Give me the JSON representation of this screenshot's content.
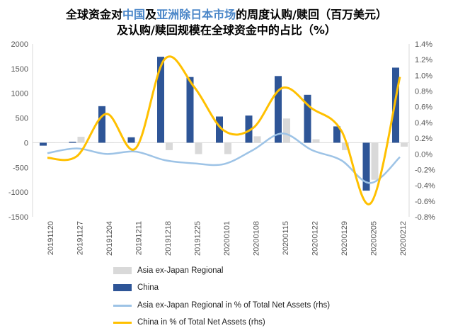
{
  "title": {
    "line1_a": "全球资金对",
    "line1_b": "中国",
    "line1_c": "及",
    "line1_d": "亚洲除日本市场",
    "line1_e": "的周度认购/赎回（百万美元）",
    "line2": "及认购/赎回规模在全球资金中的占比（%）"
  },
  "chart_data": {
    "type": "bar+line",
    "categories": [
      "20191120",
      "20191127",
      "20191204",
      "20191211",
      "20191218",
      "20191225",
      "20200101",
      "20200108",
      "20200115",
      "20200122",
      "20200129",
      "20200205",
      "20200212"
    ],
    "ylim": [
      -1500,
      2000
    ],
    "yticks": [
      "2000",
      "1500",
      "1000",
      "500",
      "0",
      "-500",
      "-1000",
      "-1500"
    ],
    "y2lim": [
      -0.8,
      1.4
    ],
    "y2ticks": [
      "1.4%",
      "1.2%",
      "1.0%",
      "0.8%",
      "0.6%",
      "0.4%",
      "0.2%",
      "0.0%",
      "-0.2%",
      "-0.4%",
      "-0.6%",
      "-0.8%"
    ],
    "grid": false,
    "legend_position": "bottom",
    "series": [
      {
        "name": "Asia ex-Japan Regional",
        "type": "bar",
        "axis": "left",
        "color": "#d9d9d9",
        "values": [
          0,
          120,
          0,
          0,
          -150,
          -230,
          -230,
          130,
          490,
          70,
          -150,
          -750,
          -80
        ]
      },
      {
        "name": "China",
        "type": "bar",
        "axis": "left",
        "color": "#2e5597",
        "values": [
          -60,
          20,
          740,
          110,
          1740,
          1330,
          530,
          550,
          1350,
          970,
          330,
          -970,
          1520
        ]
      },
      {
        "name": "Asia ex-Japan Regional  in % of Total Net Assets (rhs)",
        "type": "line",
        "axis": "right",
        "color": "#9dc3e6",
        "values": [
          0.01,
          0.07,
          0.0,
          0.03,
          -0.08,
          -0.12,
          -0.13,
          0.05,
          0.26,
          0.05,
          -0.08,
          -0.37,
          -0.04
        ]
      },
      {
        "name": "China in % of Total Net Assets (rhs)",
        "type": "line",
        "axis": "right",
        "color": "#ffc000",
        "values": [
          -0.05,
          -0.03,
          0.51,
          0.07,
          1.21,
          0.85,
          0.3,
          0.33,
          0.84,
          0.58,
          0.3,
          -0.63,
          0.98
        ]
      }
    ]
  }
}
